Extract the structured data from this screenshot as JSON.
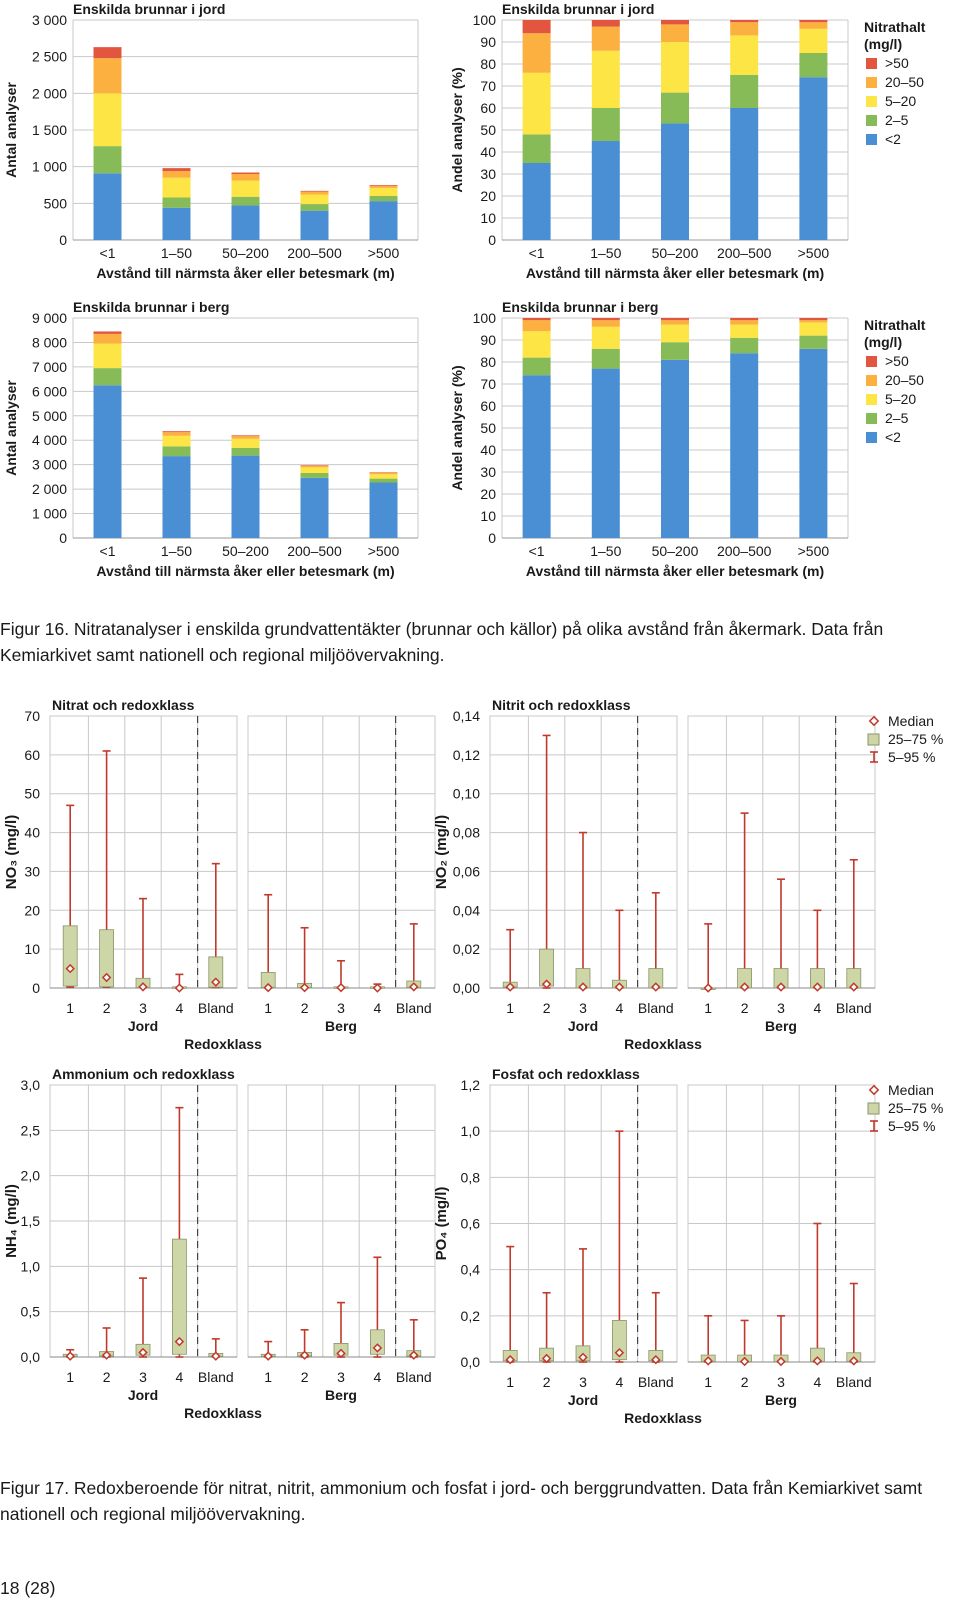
{
  "colors": {
    "gt50": "#e2553f",
    "c20_50": "#fbb040",
    "c5_20": "#fde546",
    "c2_5": "#87bb57",
    "lt2": "#4a8fd3",
    "grid": "#c8c8c8",
    "box": "#cdd6a6",
    "whisker": "#c0392b"
  },
  "fig16": {
    "legend": {
      "title_line1": "Nitrathalt",
      "title_line2": "(mg/l)",
      "items": [
        ">50",
        "20–50",
        "5–20",
        "2–5",
        "<2"
      ]
    },
    "caption": "Figur 16. Nitratanalyser i enskilda grundvattentäkter (brunnar och källor) på olika avstånd från åkermark. Data från Kemiarkivet samt nationell och regional miljöövervakning."
  },
  "fig17": {
    "legend": {
      "median": "Median",
      "box": "25–75 %",
      "whisker": "5–95 %"
    },
    "caption": "Figur 17. Redoxberoende för nitrat, nitrit, ammonium och fosfat i jord- och berggrundvatten. Data från Kemiarkivet samt nationell och regional miljöövervakning."
  },
  "page_number": "18 (28)",
  "chart_data": [
    {
      "type": "bar",
      "stacked": true,
      "title": "Enskilda brunnar i jord",
      "ylabel": "Antal analyser",
      "xlabel": "Avstånd till närmsta åker eller betesmark (m)",
      "categories": [
        "<1",
        "1–50",
        "50–200",
        "200–500",
        ">500"
      ],
      "ylim": [
        0,
        3000
      ],
      "yticks": [
        "0",
        "500",
        "1 000",
        "1 500",
        "2 000",
        "2 500",
        "3 000"
      ],
      "series": [
        {
          "name": "<2",
          "values": [
            910,
            440,
            470,
            400,
            530
          ]
        },
        {
          "name": "2–5",
          "values": [
            370,
            140,
            120,
            90,
            70
          ]
        },
        {
          "name": "5–20",
          "values": [
            720,
            270,
            220,
            130,
            110
          ]
        },
        {
          "name": "20–50",
          "values": [
            480,
            90,
            90,
            40,
            30
          ]
        },
        {
          "name": ">50",
          "values": [
            150,
            40,
            20,
            10,
            10
          ]
        }
      ]
    },
    {
      "type": "bar",
      "stacked": true,
      "title": "Enskilda brunnar i jord",
      "ylabel": "Andel analyser (%)",
      "xlabel": "Avstånd till närmsta åker eller betesmark (m)",
      "categories": [
        "<1",
        "1–50",
        "50–200",
        "200–500",
        ">500"
      ],
      "ylim": [
        0,
        100
      ],
      "yticks": [
        "0",
        "10",
        "20",
        "30",
        "40",
        "50",
        "60",
        "70",
        "80",
        "90",
        "100"
      ],
      "series": [
        {
          "name": "<2",
          "values": [
            35,
            45,
            53,
            60,
            74
          ]
        },
        {
          "name": "2–5",
          "values": [
            13,
            15,
            14,
            15,
            11
          ]
        },
        {
          "name": "5–20",
          "values": [
            28,
            26,
            23,
            18,
            11
          ]
        },
        {
          "name": "20–50",
          "values": [
            18,
            11,
            8,
            6,
            3
          ]
        },
        {
          "name": ">50",
          "values": [
            6,
            3,
            2,
            1,
            1
          ]
        }
      ]
    },
    {
      "type": "bar",
      "stacked": true,
      "title": "Enskilda brunnar i berg",
      "ylabel": "Antal analyser",
      "xlabel": "Avstånd till närmsta åker eller betesmark (m)",
      "categories": [
        "<1",
        "1–50",
        "50–200",
        "200–500",
        ">500"
      ],
      "ylim": [
        0,
        9000
      ],
      "yticks": [
        "0",
        "1 000",
        "2 000",
        "3 000",
        "4 000",
        "5 000",
        "6 000",
        "7 000",
        "8 000",
        "9 000"
      ],
      "series": [
        {
          "name": "<2",
          "values": [
            6250,
            3350,
            3370,
            2460,
            2270
          ]
        },
        {
          "name": "2–5",
          "values": [
            700,
            400,
            320,
            200,
            160
          ]
        },
        {
          "name": "5–20",
          "values": [
            1000,
            430,
            370,
            230,
            180
          ]
        },
        {
          "name": "20–50",
          "values": [
            400,
            150,
            110,
            70,
            60
          ]
        },
        {
          "name": ">50",
          "values": [
            100,
            40,
            30,
            20,
            20
          ]
        }
      ]
    },
    {
      "type": "bar",
      "stacked": true,
      "title": "Enskilda brunnar i berg",
      "ylabel": "Andel analyser (%)",
      "xlabel": "Avstånd till närmsta åker eller betesmark (m)",
      "categories": [
        "<1",
        "1–50",
        "50–200",
        "200–500",
        ">500"
      ],
      "ylim": [
        0,
        100
      ],
      "yticks": [
        "0",
        "10",
        "20",
        "30",
        "40",
        "50",
        "60",
        "70",
        "80",
        "90",
        "100"
      ],
      "series": [
        {
          "name": "<2",
          "values": [
            74,
            77,
            81,
            84,
            86
          ]
        },
        {
          "name": "2–5",
          "values": [
            8,
            9,
            8,
            7,
            6
          ]
        },
        {
          "name": "5–20",
          "values": [
            12,
            10,
            8,
            6,
            6
          ]
        },
        {
          "name": "20–50",
          "values": [
            5,
            3,
            2,
            2,
            1
          ]
        },
        {
          "name": ">50",
          "values": [
            1,
            1,
            1,
            1,
            1
          ]
        }
      ]
    },
    {
      "type": "box",
      "title": "Nitrat och redoxklass",
      "ylabel": "NO₃ (mg/l)",
      "ylim": [
        0,
        70
      ],
      "yticks": [
        "0",
        "10",
        "20",
        "30",
        "40",
        "50",
        "60",
        "70"
      ],
      "categories": [
        "1",
        "2",
        "3",
        "4",
        "Bland"
      ],
      "groups": [
        "Jord",
        "Berg"
      ],
      "group_label": "Redoxklass",
      "data": {
        "Jord": [
          {
            "p5": 0.2,
            "p25": 0.5,
            "median": 5,
            "p75": 16,
            "p95": 47
          },
          {
            "p5": 0.2,
            "p25": 0.3,
            "median": 2.7,
            "p75": 15,
            "p95": 61
          },
          {
            "p5": 0.1,
            "p25": 0.1,
            "median": 0.3,
            "p75": 2.5,
            "p95": 23
          },
          {
            "p5": 0,
            "p25": 0,
            "median": 0,
            "p75": 0.3,
            "p95": 3.5
          },
          {
            "p5": 0.1,
            "p25": 0.2,
            "median": 1.5,
            "p75": 8,
            "p95": 32
          }
        ],
        "Berg": [
          {
            "p5": 0.1,
            "p25": 0.1,
            "median": 0.1,
            "p75": 4,
            "p95": 24
          },
          {
            "p5": 0.1,
            "p25": 0.1,
            "median": 0.1,
            "p75": 1.2,
            "p95": 15.5
          },
          {
            "p5": 0,
            "p25": 0,
            "median": 0.1,
            "p75": 0.3,
            "p95": 7
          },
          {
            "p5": 0,
            "p25": 0,
            "median": 0,
            "p75": 0.3,
            "p95": 1
          },
          {
            "p5": 0.1,
            "p25": 0.1,
            "median": 0.3,
            "p75": 1.8,
            "p95": 16.5
          }
        ]
      }
    },
    {
      "type": "box",
      "title": "Nitrit och redoxklass",
      "ylabel": "NO₂ (mg/l)",
      "ylim": [
        0,
        0.14
      ],
      "yticks": [
        "0,00",
        "0,02",
        "0,04",
        "0,06",
        "0,08",
        "0,10",
        "0,12",
        "0,14"
      ],
      "categories": [
        "1",
        "2",
        "3",
        "4",
        "Bland"
      ],
      "groups": [
        "Jord",
        "Berg"
      ],
      "group_label": "Redoxklass",
      "data": {
        "Jord": [
          {
            "p5": 0,
            "p25": 0.0005,
            "median": 0.0005,
            "p75": 0.003,
            "p95": 0.03
          },
          {
            "p5": 0,
            "p25": 0.001,
            "median": 0.002,
            "p75": 0.02,
            "p95": 0.13
          },
          {
            "p5": 0,
            "p25": 0,
            "median": 0.0005,
            "p75": 0.01,
            "p95": 0.08
          },
          {
            "p5": 0,
            "p25": 0,
            "median": 0.0005,
            "p75": 0.004,
            "p95": 0.04
          },
          {
            "p5": 0,
            "p25": 0,
            "median": 0.0005,
            "p75": 0.01,
            "p95": 0.049
          }
        ],
        "Berg": [
          {
            "p5": 0,
            "p25": 0,
            "median": 0,
            "p75": 0,
            "p95": 0.033
          },
          {
            "p5": 0,
            "p25": 0,
            "median": 0.0005,
            "p75": 0.01,
            "p95": 0.09
          },
          {
            "p5": 0,
            "p25": 0,
            "median": 0.0005,
            "p75": 0.01,
            "p95": 0.056
          },
          {
            "p5": 0,
            "p25": 0,
            "median": 0.0005,
            "p75": 0.01,
            "p95": 0.04
          },
          {
            "p5": 0,
            "p25": 0,
            "median": 0.0005,
            "p75": 0.01,
            "p95": 0.066
          }
        ]
      }
    },
    {
      "type": "box",
      "title": "Ammonium och redoxklass",
      "ylabel": "NH₄ (mg/l)",
      "ylim": [
        0,
        3
      ],
      "yticks": [
        "0,0",
        "0,5",
        "1,0",
        "1,5",
        "2,0",
        "2,5",
        "3,0"
      ],
      "categories": [
        "1",
        "2",
        "3",
        "4",
        "Bland"
      ],
      "groups": [
        "Jord",
        "Berg"
      ],
      "group_label": "Redoxklass",
      "data": {
        "Jord": [
          {
            "p5": 0,
            "p25": 0.005,
            "median": 0.01,
            "p75": 0.03,
            "p95": 0.08
          },
          {
            "p5": 0,
            "p25": 0.01,
            "median": 0.02,
            "p75": 0.06,
            "p95": 0.32
          },
          {
            "p5": 0,
            "p25": 0.02,
            "median": 0.05,
            "p75": 0.14,
            "p95": 0.87
          },
          {
            "p5": 0,
            "p25": 0.03,
            "median": 0.17,
            "p75": 1.3,
            "p95": 2.75
          },
          {
            "p5": 0,
            "p25": 0.005,
            "median": 0.01,
            "p75": 0.04,
            "p95": 0.2
          }
        ],
        "Berg": [
          {
            "p5": 0,
            "p25": 0.005,
            "median": 0.01,
            "p75": 0.03,
            "p95": 0.17
          },
          {
            "p5": 0,
            "p25": 0.01,
            "median": 0.02,
            "p75": 0.05,
            "p95": 0.3
          },
          {
            "p5": 0,
            "p25": 0.02,
            "median": 0.04,
            "p75": 0.15,
            "p95": 0.6
          },
          {
            "p5": 0,
            "p25": 0.03,
            "median": 0.1,
            "p75": 0.3,
            "p95": 1.1
          },
          {
            "p5": 0,
            "p25": 0.01,
            "median": 0.02,
            "p75": 0.07,
            "p95": 0.41
          }
        ]
      }
    },
    {
      "type": "box",
      "title": "Fosfat och redoxklass",
      "ylabel": "PO₄ (mg/l)",
      "ylim": [
        0,
        1.2
      ],
      "yticks": [
        "0,0",
        "0,2",
        "0,4",
        "0,6",
        "0,8",
        "1,0",
        "1,2"
      ],
      "categories": [
        "1",
        "2",
        "3",
        "4",
        "Bland"
      ],
      "groups": [
        "Jord",
        "Berg"
      ],
      "group_label": "Redoxklass",
      "data": {
        "Jord": [
          {
            "p5": 0,
            "p25": 0.005,
            "median": 0.01,
            "p75": 0.05,
            "p95": 0.5
          },
          {
            "p5": 0,
            "p25": 0.005,
            "median": 0.015,
            "p75": 0.06,
            "p95": 0.3
          },
          {
            "p5": 0,
            "p25": 0.005,
            "median": 0.02,
            "p75": 0.07,
            "p95": 0.49
          },
          {
            "p5": 0,
            "p25": 0.01,
            "median": 0.04,
            "p75": 0.18,
            "p95": 1.0
          },
          {
            "p5": 0,
            "p25": 0.005,
            "median": 0.01,
            "p75": 0.05,
            "p95": 0.3
          }
        ],
        "Berg": [
          {
            "p5": 0,
            "p25": 0.002,
            "median": 0.005,
            "p75": 0.03,
            "p95": 0.2
          },
          {
            "p5": 0,
            "p25": 0.001,
            "median": 0.002,
            "p75": 0.03,
            "p95": 0.18
          },
          {
            "p5": 0,
            "p25": 0.001,
            "median": 0.002,
            "p75": 0.03,
            "p95": 0.2
          },
          {
            "p5": 0,
            "p25": 0.002,
            "median": 0.005,
            "p75": 0.06,
            "p95": 0.6
          },
          {
            "p5": 0,
            "p25": 0.002,
            "median": 0.005,
            "p75": 0.04,
            "p95": 0.34
          }
        ]
      }
    }
  ]
}
